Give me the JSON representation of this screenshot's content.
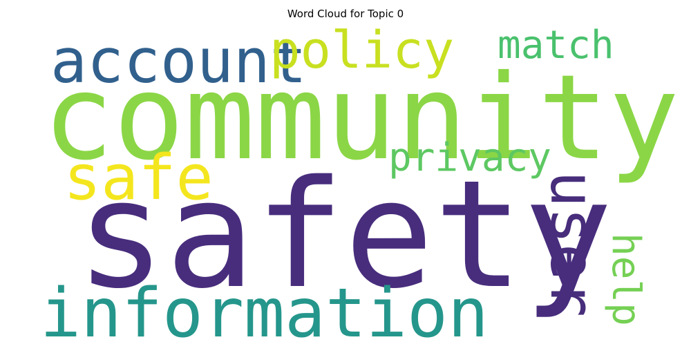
{
  "title": "Word Cloud for Topic 0",
  "words": {
    "community": {
      "text": "community",
      "color": "#8bd646"
    },
    "safety": {
      "text": "safety",
      "color": "#482d7d"
    },
    "information": {
      "text": "information",
      "color": "#25968b"
    },
    "account": {
      "text": "account",
      "color": "#31608d"
    },
    "policy": {
      "text": "policy",
      "color": "#c8e020"
    },
    "match": {
      "text": "match",
      "color": "#4ac16d"
    },
    "safe": {
      "text": "safe",
      "color": "#f4e61e"
    },
    "privacy": {
      "text": "privacy",
      "color": "#5dc862"
    },
    "user": {
      "text": "user",
      "color": "#472d7b"
    },
    "help": {
      "text": "help",
      "color": "#75d054"
    }
  }
}
